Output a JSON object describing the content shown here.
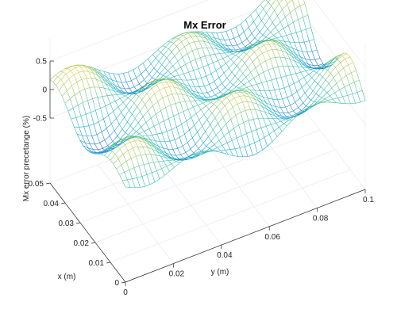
{
  "chart_data": {
    "type": "surface-mesh",
    "title": "Mx Error",
    "xlabel": "x (m)",
    "ylabel": "y (m)",
    "zlabel": "Mx error precetange (%)",
    "xlim": [
      0,
      0.05
    ],
    "ylim": [
      0,
      0.1
    ],
    "zlim": [
      -0.5,
      0.5
    ],
    "x_ticks": [
      "0",
      "0.01",
      "0.02",
      "0.03",
      "0.04",
      "0.05"
    ],
    "y_ticks": [
      "0",
      "0.02",
      "0.04",
      "0.06",
      "0.08",
      "0.1"
    ],
    "z_ticks": [
      "0.5",
      "0",
      "-0.5"
    ],
    "grid": true,
    "colormap": "parula-like (blue low, cyan/green mid, yellow high)",
    "mesh_resolution": {
      "nx": 26,
      "ny": 50
    }
  }
}
